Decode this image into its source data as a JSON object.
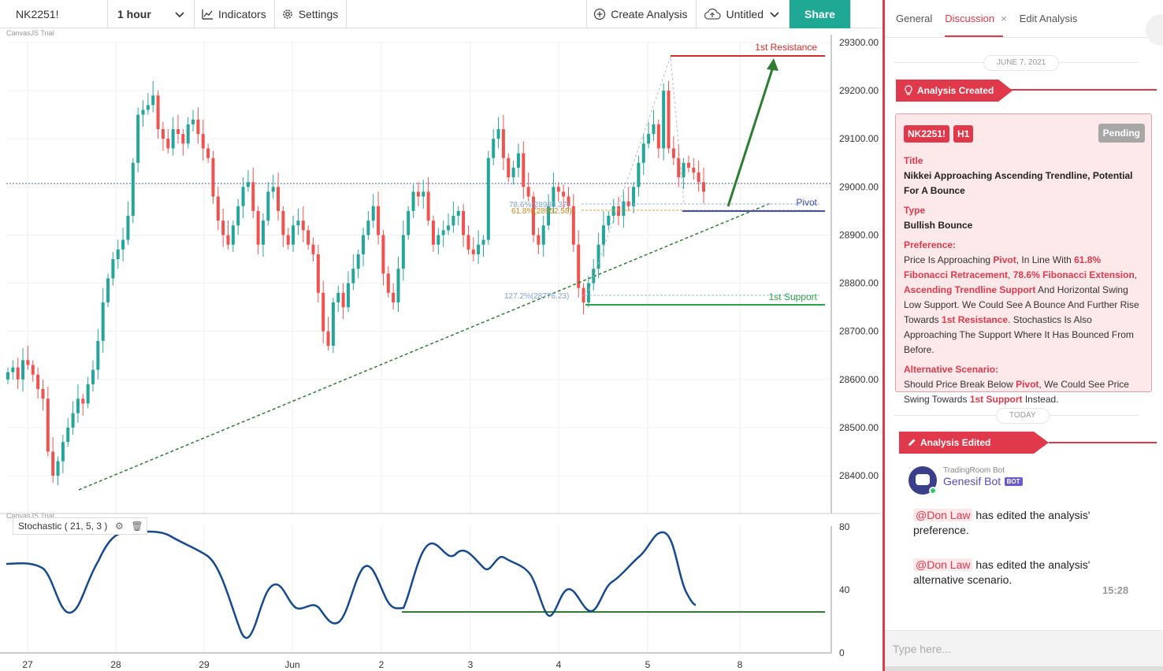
{
  "toolbar": {
    "symbol": "NK2251!",
    "interval": "1 hour",
    "indicators": "Indicators",
    "settings": "Settings",
    "create_analysis": "Create Analysis",
    "untitled": "Untitled",
    "share": "Share"
  },
  "colors": {
    "accent": "#e0394c",
    "share": "#1fa894",
    "bull_candle": "#26a69a",
    "bear_candle": "#ef5350",
    "trend": "#2e7d32",
    "stoch_line": "#174a8c"
  },
  "chart": {
    "watermark": "CanvasJS Trial",
    "price_ticks": [
      "29300.00",
      "29200.00",
      "29100.00",
      "29000.00",
      "28900.00",
      "28800.00",
      "28700.00",
      "28600.00",
      "28500.00",
      "28400.00"
    ],
    "date_ticks": [
      "27",
      "28",
      "29",
      "Jun",
      "2",
      "3",
      "4",
      "5",
      "8"
    ],
    "levels": {
      "resistance": "1st Resistance",
      "pivot": "Pivot",
      "support": "1st Support",
      "fib_786": "78.6%(28985.37)",
      "fib_618": "61.8%(28952.58)",
      "fib_1272": "127.2%(28776.23)"
    },
    "stochastic": {
      "label": "Stochastic ( 21, 5, 3 )",
      "ticks": [
        "80",
        "40",
        "0"
      ]
    }
  },
  "panel": {
    "tabs": [
      "General",
      "Discussion",
      "Edit Analysis"
    ],
    "date1": "JUNE 7, 2021",
    "event1": "Analysis Created",
    "card": {
      "symbol": "NK2251!",
      "timeframe": "H1",
      "status": "Pending",
      "title_label": "Title",
      "title": "Nikkei Approaching Ascending Trendline, Potential For A Bounce",
      "type_label": "Type",
      "type": "Bullish Bounce",
      "preference_label": "Preference:",
      "pref_1": "Price Is Approaching ",
      "pref_pivot": "Pivot",
      "pref_2": ", In Line With ",
      "pref_fib1": "61.8% Fibonacci Retracement",
      "pref_3": ", ",
      "pref_fib2": "78.6% Fibonacci Extension",
      "pref_4": ", ",
      "pref_trend": "Ascending Trendline Support",
      "pref_5": " And Horizontal Swing Low Support. We Could See A Bounce And Further Rise Towards ",
      "pref_res": "1st Resistance",
      "pref_6": ". Stochastics Is Also Approaching The Support Where It Has Bounced From Before.",
      "alt_label": "Alternative Scenario:",
      "alt_1": "Should Price Break Below ",
      "alt_pivot": "Pivot",
      "alt_2": ", We Could See Price Swing Towards ",
      "alt_support": "1st Support",
      "alt_3": " Instead."
    },
    "date2": "TODAY",
    "event2": "Analysis Edited",
    "bot": {
      "org": "TradingRoom Bot",
      "name": "Genesif Bot",
      "tag": "BOT"
    },
    "msg1_user": "@Don Law",
    "msg1_text": " has edited the analysis' preference.",
    "msg2_user": "@Don Law",
    "msg2_text": " has edited the analysis' alternative scenario.",
    "time": "15:28",
    "input_placeholder": "Type here..."
  }
}
